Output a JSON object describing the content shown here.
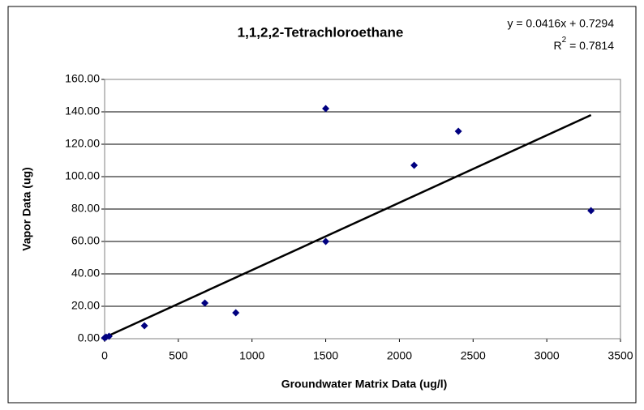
{
  "chart_data": {
    "type": "scatter",
    "title": "1,1,2,2-Tetrachloroethane",
    "xlabel": "Groundwater Matrix Data (ug/l)",
    "ylabel": "Vapor Data (ug)",
    "x": [
      0,
      10,
      30,
      270,
      680,
      890,
      1500,
      1500,
      2100,
      2400,
      3300
    ],
    "values": [
      0.5,
      1,
      1.5,
      8,
      22,
      16,
      142,
      60,
      107,
      128,
      79
    ],
    "color": "#000080",
    "xlim": [
      0,
      3500
    ],
    "xticks": [
      0,
      500,
      1000,
      1500,
      2000,
      2500,
      3000,
      3500
    ],
    "ylim": [
      0,
      160
    ],
    "yticks": [
      {
        "value": 0,
        "label": "0.00"
      },
      {
        "value": 20,
        "label": "20.00"
      },
      {
        "value": 40,
        "label": "40.00"
      },
      {
        "value": 60,
        "label": "60.00"
      },
      {
        "value": 80,
        "label": "80.00"
      },
      {
        "value": 100,
        "label": "100.00"
      },
      {
        "value": 120,
        "label": "120.00"
      },
      {
        "value": 140,
        "label": "140.00"
      },
      {
        "value": 160,
        "label": "160.00"
      }
    ],
    "grid": true,
    "trendline": {
      "slope": 0.0416,
      "intercept": 0.7294,
      "color": "#000000",
      "equation": "y = 0.0416x + 0.7294",
      "r2_symbol": "R",
      "r2_power": "2",
      "r2_value": " = 0.7814"
    }
  }
}
